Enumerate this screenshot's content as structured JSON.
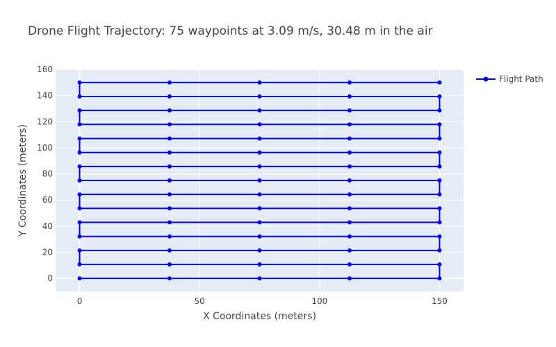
{
  "chart_data": {
    "type": "line",
    "title": "Drone Flight Trajectory: 75 waypoints at 3.09 m/s, 30.48 m in the air",
    "xlabel": "X Coordinates (meters)",
    "ylabel": "Y Coordinates (meters)",
    "xlim": [
      -10,
      160
    ],
    "ylim": [
      -10,
      160
    ],
    "xticks": [
      0,
      50,
      100,
      150
    ],
    "yticks": [
      0,
      20,
      40,
      60,
      80,
      100,
      120,
      140,
      160
    ],
    "grid": true,
    "legend": "top-right",
    "series": [
      {
        "name": "Flight Path",
        "color": "#0000ff",
        "x": [
          0,
          37.5,
          75,
          112.5,
          150,
          150,
          112.5,
          75,
          37.5,
          0,
          0,
          37.5,
          75,
          112.5,
          150,
          150,
          112.5,
          75,
          37.5,
          0,
          0,
          37.5,
          75,
          112.5,
          150,
          150,
          112.5,
          75,
          37.5,
          0,
          0,
          37.5,
          75,
          112.5,
          150,
          150,
          112.5,
          75,
          37.5,
          0,
          0,
          37.5,
          75,
          112.5,
          150,
          150,
          112.5,
          75,
          37.5,
          0,
          0,
          37.5,
          75,
          112.5,
          150,
          150,
          112.5,
          75,
          37.5,
          0,
          0,
          37.5,
          75,
          112.5,
          150,
          150,
          112.5,
          75,
          37.5,
          0,
          0,
          37.5,
          75,
          112.5,
          150
        ],
        "y": [
          0,
          0,
          0,
          0,
          0,
          10.7,
          10.7,
          10.7,
          10.7,
          10.7,
          21.4,
          21.4,
          21.4,
          21.4,
          21.4,
          32.1,
          32.1,
          32.1,
          32.1,
          32.1,
          42.9,
          42.9,
          42.9,
          42.9,
          42.9,
          53.6,
          53.6,
          53.6,
          53.6,
          53.6,
          64.3,
          64.3,
          64.3,
          64.3,
          64.3,
          75,
          75,
          75,
          75,
          75,
          85.7,
          85.7,
          85.7,
          85.7,
          85.7,
          96.4,
          96.4,
          96.4,
          96.4,
          96.4,
          107.1,
          107.1,
          107.1,
          107.1,
          107.1,
          117.9,
          117.9,
          117.9,
          117.9,
          117.9,
          128.6,
          128.6,
          128.6,
          128.6,
          128.6,
          139.3,
          139.3,
          139.3,
          139.3,
          139.3,
          150,
          150,
          150,
          150,
          150
        ]
      }
    ]
  }
}
